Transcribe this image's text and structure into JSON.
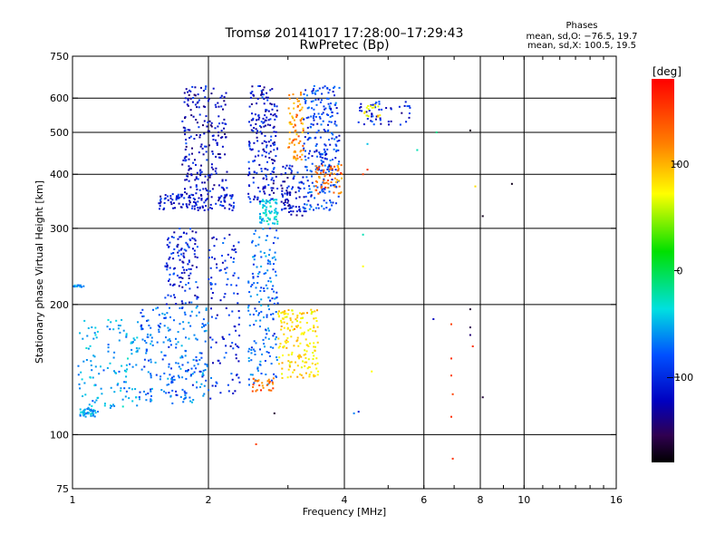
{
  "chart_data": {
    "type": "scatter",
    "title": "Tromsø 20141017 17:28:00–17:29:43",
    "subtitle": "RwPretec (Bp)",
    "xlabel": "Frequency [MHz]",
    "ylabel": "Stationary phase Virtual Height [km]",
    "x_scale": "log",
    "y_scale": "log",
    "xlim": [
      1,
      16
    ],
    "ylim": [
      75,
      750
    ],
    "x_ticks": [
      1,
      2,
      4,
      6,
      8,
      10,
      16
    ],
    "y_ticks": [
      75,
      100,
      200,
      300,
      400,
      500,
      600,
      750
    ],
    "x_grid": [
      2,
      4,
      6,
      8,
      10
    ],
    "y_grid": [
      100,
      200,
      300,
      400,
      500,
      600
    ],
    "legend": {
      "title": "Phases",
      "lines": [
        "mean, sd,O: −76.5, 19.7",
        "mean, sd,X: 100.5, 19.5"
      ]
    },
    "colorbar": {
      "unit": "[deg]",
      "range": [
        -180,
        180
      ],
      "ticks": [
        100,
        0,
        -100
      ]
    },
    "clusters": [
      {
        "xmin": 1.0,
        "xmax": 1.06,
        "ymin": 219,
        "ymax": 222,
        "n": 12,
        "phase": -80
      },
      {
        "xmin": 1.03,
        "xmax": 1.15,
        "ymin": 110,
        "ymax": 115,
        "n": 40,
        "phase": -70
      },
      {
        "xmin": 1.03,
        "xmax": 1.4,
        "ymin": 115,
        "ymax": 185,
        "n": 130,
        "phase": -70
      },
      {
        "xmin": 1.4,
        "xmax": 2.0,
        "ymin": 118,
        "ymax": 200,
        "n": 230,
        "phase": -85
      },
      {
        "xmin": 1.6,
        "xmax": 1.9,
        "ymin": 200,
        "ymax": 300,
        "n": 120,
        "phase": -110
      },
      {
        "xmin": 2.0,
        "xmax": 2.35,
        "ymin": 120,
        "ymax": 290,
        "n": 110,
        "phase": -110
      },
      {
        "xmin": 1.55,
        "xmax": 2.3,
        "ymin": 330,
        "ymax": 360,
        "n": 120,
        "phase": -115
      },
      {
        "xmin": 1.75,
        "xmax": 2.2,
        "ymin": 360,
        "ymax": 640,
        "n": 210,
        "phase": -120
      },
      {
        "xmin": 2.45,
        "xmax": 2.85,
        "ymin": 130,
        "ymax": 300,
        "n": 170,
        "phase": -85
      },
      {
        "xmin": 2.5,
        "xmax": 2.8,
        "ymin": 126,
        "ymax": 136,
        "n": 30,
        "phase": 145
      },
      {
        "xmin": 2.45,
        "xmax": 2.85,
        "ymin": 345,
        "ymax": 640,
        "n": 200,
        "phase": -115
      },
      {
        "xmin": 2.6,
        "xmax": 2.85,
        "ymin": 305,
        "ymax": 350,
        "n": 70,
        "phase": -55
      },
      {
        "xmin": 2.85,
        "xmax": 3.5,
        "ymin": 135,
        "ymax": 195,
        "n": 170,
        "phase": 110
      },
      {
        "xmin": 2.9,
        "xmax": 3.3,
        "ymin": 320,
        "ymax": 420,
        "n": 90,
        "phase": -115
      },
      {
        "xmin": 3.0,
        "xmax": 3.25,
        "ymin": 430,
        "ymax": 620,
        "n": 80,
        "phase": 135
      },
      {
        "xmin": 3.25,
        "xmax": 3.9,
        "ymin": 330,
        "ymax": 640,
        "n": 260,
        "phase": -100
      },
      {
        "xmin": 3.45,
        "xmax": 3.95,
        "ymin": 360,
        "ymax": 420,
        "n": 60,
        "phase": 145
      },
      {
        "xmin": 4.3,
        "xmax": 5.6,
        "ymin": 520,
        "ymax": 590,
        "n": 50,
        "phase": -110
      },
      {
        "xmin": 4.4,
        "xmax": 4.8,
        "ymin": 540,
        "ymax": 580,
        "n": 15,
        "phase": 100
      }
    ],
    "points": [
      {
        "x": 2.55,
        "y": 95,
        "phase": 160
      },
      {
        "x": 2.8,
        "y": 112,
        "phase": -160
      },
      {
        "x": 3.5,
        "y": 140,
        "phase": 100
      },
      {
        "x": 4.2,
        "y": 112,
        "phase": -80
      },
      {
        "x": 4.3,
        "y": 113,
        "phase": -110
      },
      {
        "x": 4.6,
        "y": 140,
        "phase": 100
      },
      {
        "x": 4.4,
        "y": 245,
        "phase": 100
      },
      {
        "x": 4.4,
        "y": 290,
        "phase": -40
      },
      {
        "x": 4.4,
        "y": 400,
        "phase": 160
      },
      {
        "x": 4.5,
        "y": 410,
        "phase": 165
      },
      {
        "x": 4.5,
        "y": 470,
        "phase": -60
      },
      {
        "x": 5.8,
        "y": 455,
        "phase": -40
      },
      {
        "x": 6.3,
        "y": 185,
        "phase": -120
      },
      {
        "x": 6.9,
        "y": 180,
        "phase": 160
      },
      {
        "x": 6.9,
        "y": 150,
        "phase": 165
      },
      {
        "x": 6.9,
        "y": 137,
        "phase": 160
      },
      {
        "x": 6.95,
        "y": 124,
        "phase": 160
      },
      {
        "x": 6.9,
        "y": 110,
        "phase": 165
      },
      {
        "x": 6.95,
        "y": 88,
        "phase": 165
      },
      {
        "x": 7.6,
        "y": 195,
        "phase": -160
      },
      {
        "x": 7.6,
        "y": 177,
        "phase": -150
      },
      {
        "x": 7.6,
        "y": 170,
        "phase": -140
      },
      {
        "x": 7.7,
        "y": 160,
        "phase": 165
      },
      {
        "x": 7.8,
        "y": 375,
        "phase": 110
      },
      {
        "x": 7.6,
        "y": 505,
        "phase": -170
      },
      {
        "x": 8.1,
        "y": 320,
        "phase": -170
      },
      {
        "x": 8.1,
        "y": 122,
        "phase": -160
      },
      {
        "x": 9.4,
        "y": 380,
        "phase": -170
      },
      {
        "x": 6.4,
        "y": 500,
        "phase": -30
      }
    ]
  }
}
